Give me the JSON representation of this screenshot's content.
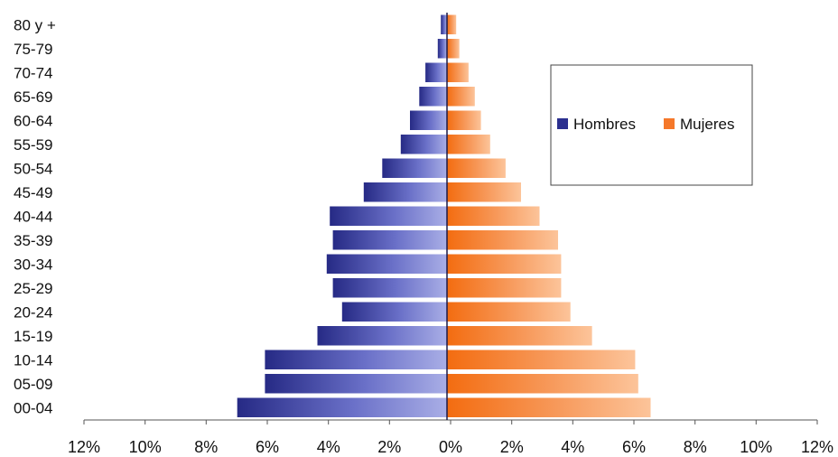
{
  "chart_data": {
    "type": "bar",
    "orientation": "horizontal",
    "layout": "population-pyramid",
    "categories": [
      "00-04",
      "05-09",
      "10-14",
      "15-19",
      "20-24",
      "25-29",
      "30-34",
      "35-39",
      "40-44",
      "45-49",
      "50-54",
      "55-59",
      "60-64",
      "65-69",
      "70-74",
      "75-79",
      "80 y +"
    ],
    "series": [
      {
        "name": "Hombres",
        "side": "left",
        "color": "#2b2f8f",
        "values": [
          6.8,
          5.9,
          5.9,
          4.2,
          3.4,
          3.7,
          3.9,
          3.7,
          3.8,
          2.7,
          2.1,
          1.5,
          1.2,
          0.9,
          0.7,
          0.3,
          0.2
        ]
      },
      {
        "name": "Mujeres",
        "side": "right",
        "color": "#f5782a",
        "values": [
          6.6,
          6.2,
          6.1,
          4.7,
          4.0,
          3.7,
          3.7,
          3.6,
          3.0,
          2.4,
          1.9,
          1.4,
          1.1,
          0.9,
          0.7,
          0.4,
          0.3
        ]
      }
    ],
    "xlim": [
      -12,
      12
    ],
    "xticks": [
      "12%",
      "10%",
      "8%",
      "6%",
      "4%",
      "2%",
      "0%",
      "2%",
      "4%",
      "6%",
      "8%",
      "10%",
      "12%"
    ],
    "xlabel": "",
    "ylabel": "",
    "title": "",
    "grid": false,
    "legend_position": "top-right"
  }
}
